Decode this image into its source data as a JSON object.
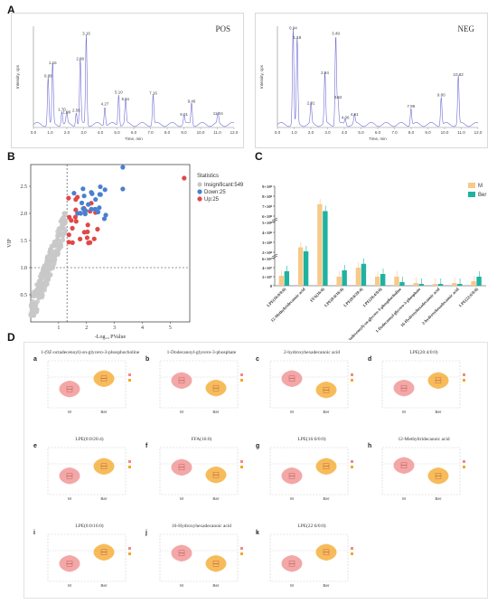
{
  "panels": {
    "a": "A",
    "b": "B",
    "c": "C",
    "d": "D"
  },
  "chrom": {
    "pos": {
      "tag": "POS",
      "time_label": "Time, min",
      "y_label": "Intensity, cps",
      "peaks": [
        {
          "t": 0.88,
          "h": 0.47,
          "label": "0.88"
        },
        {
          "t": 1.15,
          "h": 0.6,
          "label": "1.15"
        },
        {
          "t": 1.7,
          "h": 0.14,
          "label": "1.70"
        },
        {
          "t": 1.99,
          "h": 0.11,
          "label": "1.99"
        },
        {
          "t": 2.56,
          "h": 0.13,
          "label": "2.56"
        },
        {
          "t": 2.8,
          "h": 0.64,
          "label": "2.80"
        },
        {
          "t": 3.16,
          "h": 0.89,
          "label": "3.16"
        },
        {
          "t": 4.27,
          "h": 0.19,
          "label": "4.27"
        },
        {
          "t": 5.1,
          "h": 0.31,
          "label": "5.10"
        },
        {
          "t": 5.51,
          "h": 0.24,
          "label": "5.51"
        },
        {
          "t": 7.16,
          "h": 0.3,
          "label": "7.16"
        },
        {
          "t": 9.01,
          "h": 0.09,
          "label": "9.01"
        },
        {
          "t": 9.46,
          "h": 0.22,
          "label": "9.46"
        },
        {
          "t": 11.04,
          "h": 0.1,
          "label": "11.04"
        }
      ]
    },
    "neg": {
      "tag": "NEG",
      "time_label": "Time, min",
      "y_label": "Intensity, cps",
      "peaks": [
        {
          "t": 0.94,
          "h": 0.94,
          "label": "0.94"
        },
        {
          "t": 1.18,
          "h": 0.85,
          "label": "1.18"
        },
        {
          "t": 2.01,
          "h": 0.2,
          "label": "2.01"
        },
        {
          "t": 2.84,
          "h": 0.5,
          "label": "2.84"
        },
        {
          "t": 3.49,
          "h": 0.89,
          "label": "3.49"
        },
        {
          "t": 3.62,
          "h": 0.26,
          "label": "3.62"
        },
        {
          "t": 4.06,
          "h": 0.06,
          "label": "4.06"
        },
        {
          "t": 4.61,
          "h": 0.09,
          "label": "4.61"
        },
        {
          "t": 7.99,
          "h": 0.17,
          "label": "7.99"
        },
        {
          "t": 9.8,
          "h": 0.28,
          "label": "9.80"
        },
        {
          "t": 10.82,
          "h": 0.48,
          "label": "10.82"
        }
      ]
    }
  },
  "volcano": {
    "xlabel": "-Log₁₀ PValue",
    "ylabel": "VIP",
    "legend_title": "Statistics",
    "legend": [
      {
        "label": "Insignificant:549",
        "color": "#c8c8c8"
      },
      {
        "label": "Down:25",
        "color": "#4a7fd0"
      },
      {
        "label": "Up:25",
        "color": "#e04848"
      }
    ],
    "x_ticks": [
      "1",
      "2",
      "3",
      "4",
      "5"
    ],
    "y_ticks": [
      "0.5",
      "1.0",
      "1.5",
      "2.0",
      "2.5"
    ]
  },
  "chart_data": {
    "type": "bar",
    "categories": [
      "LPE(16:0/0:0)",
      "12-Methyltridecanoic acid",
      "FFA(16:0)",
      "LPE(0:0/16:0)",
      "LPE(0:0/20:4)",
      "LPE(20:4/0:0)",
      "1-(9Z-octadecenoyl)-sn-glycero-3-phosphocholine",
      "1-Dodecanoyl-glycero-3-phosphate",
      "16-Hydroxyhexadecanoic acid",
      "2-hydroxyhexadecanoic acid",
      "LPE(22:6/0:0)"
    ],
    "series": [
      {
        "name": "M",
        "color": "#f7c98a",
        "values": [
          1.1,
          2.5,
          7.2,
          1.0,
          2.0,
          1.0,
          1.0,
          0.3,
          0.2,
          0.3,
          0.5
        ]
      },
      {
        "name": "Ber",
        "color": "#1fb2a0",
        "values": [
          1.6,
          2.1,
          6.5,
          1.7,
          4.2,
          1.3,
          0.4,
          0.2,
          0.2,
          0.2,
          1.0
        ]
      }
    ],
    "y_ticks": [
      "0",
      "2×10⁷",
      "4×10⁷",
      "6×10⁷",
      "2×10⁸",
      "3×10⁸",
      "4×10⁸",
      "5×10⁸",
      "6×10⁸",
      "7×10⁸",
      "8×10⁸",
      "9×10⁸"
    ]
  },
  "violins": [
    {
      "letter": "a",
      "title": "1-(9Z-octadecenoyl)-sn-glycero-3-phosphocholine",
      "m": 0.4,
      "ber": 0.62
    },
    {
      "letter": "b",
      "title": "1-Dodecanoyl-glycero-3-phosphate",
      "m": 0.58,
      "ber": 0.42
    },
    {
      "letter": "c",
      "title": "2-hydroxyhexadecanoic acid",
      "m": 0.62,
      "ber": 0.38
    },
    {
      "letter": "d",
      "title": "LPE(20:4/0:0)",
      "m": 0.42,
      "ber": 0.58
    },
    {
      "letter": "e",
      "title": "LPE(0:0/20:4)",
      "m": 0.4,
      "ber": 0.6
    },
    {
      "letter": "f",
      "title": "FFA(16:0)",
      "m": 0.58,
      "ber": 0.42
    },
    {
      "letter": "g",
      "title": "LPE(16:0/0:0)",
      "m": 0.4,
      "ber": 0.6
    },
    {
      "letter": "h",
      "title": "12-Methyltridecanoic acid",
      "m": 0.62,
      "ber": 0.4
    },
    {
      "letter": "i",
      "title": "LPE(0:0/16:0)",
      "m": 0.38,
      "ber": 0.62
    },
    {
      "letter": "j",
      "title": "16-Hydroxyhexadecanoic acid",
      "m": 0.6,
      "ber": 0.38
    },
    {
      "letter": "k",
      "title": "LPE(22:6/0:0)",
      "m": 0.38,
      "ber": 0.62
    }
  ],
  "violin_groups": [
    "M",
    "Ber"
  ],
  "colors": {
    "m": "#f08a8a",
    "ber": "#f5a623",
    "chrom_line": "#6f6fd6"
  }
}
